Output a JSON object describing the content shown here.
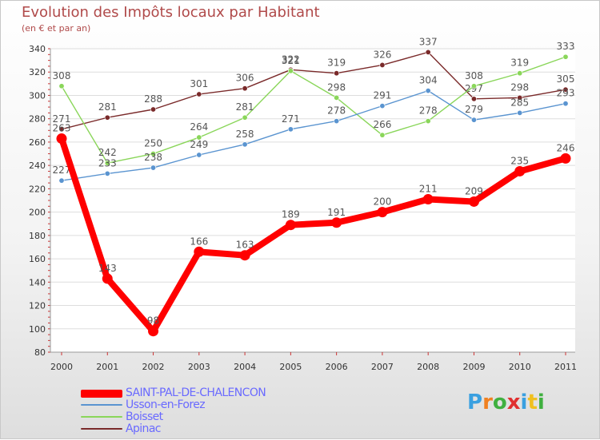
{
  "header": {
    "title": "Evolution des Impôts locaux par Habitant",
    "subtitle": "(en € et par an)"
  },
  "logo": {
    "text": "Proxiti",
    "letters": [
      "P",
      "r",
      "o",
      "x",
      "i",
      "t",
      "i"
    ],
    "colors": [
      "#3aa0e0",
      "#f08020",
      "#40b040",
      "#e03030",
      "#3aa0e0",
      "#f0c020",
      "#40b040"
    ]
  },
  "chart_data": {
    "type": "line",
    "categories": [
      "2000",
      "2001",
      "2002",
      "2003",
      "2004",
      "2005",
      "2006",
      "2007",
      "2008",
      "2009",
      "2010",
      "2011"
    ],
    "ylim": [
      80,
      340
    ],
    "yticks": [
      80,
      100,
      120,
      140,
      160,
      180,
      200,
      220,
      240,
      260,
      280,
      300,
      320,
      340
    ],
    "series": [
      {
        "name": "Apinac",
        "color": "#7a2a2a",
        "values": [
          271,
          281,
          288,
          301,
          306,
          322,
          319,
          326,
          337,
          297,
          298,
          305
        ]
      },
      {
        "name": "Boisset",
        "color": "#8ad65a",
        "values": [
          308,
          242,
          250,
          264,
          281,
          321,
          298,
          266,
          278,
          308,
          319,
          333
        ]
      },
      {
        "name": "Usson-en-Forez",
        "color": "#5a94d0",
        "values": [
          227,
          233,
          238,
          249,
          258,
          271,
          278,
          291,
          304,
          279,
          285,
          293
        ]
      },
      {
        "name": "SAINT-PAL-DE-CHALENCON",
        "color": "#ff0000",
        "values": [
          263,
          143,
          98,
          166,
          163,
          189,
          191,
          200,
          211,
          209,
          235,
          246
        ]
      }
    ],
    "legend": [
      {
        "name": "SAINT-PAL-DE-CHALENCON",
        "color": "#ff0000"
      },
      {
        "name": "Usson-en-Forez",
        "color": "#5a94d0"
      },
      {
        "name": "Boisset",
        "color": "#8ad65a"
      },
      {
        "name": "Apinac",
        "color": "#7a2a2a"
      }
    ]
  }
}
